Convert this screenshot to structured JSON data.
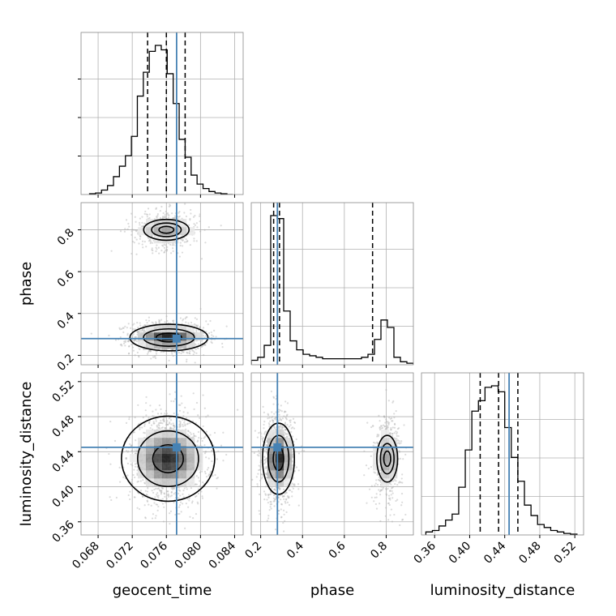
{
  "chart_data": {
    "type": "corner",
    "params": [
      "geocent_time",
      "phase",
      "luminosity_distance"
    ],
    "truths": {
      "geocent_time": 0.0772,
      "phase": 0.28,
      "luminosity_distance": 0.445
    },
    "quantiles": {
      "geocent_time": [
        0.0738,
        0.076,
        0.0782
      ],
      "phase": [
        0.262,
        0.29,
        0.735
      ],
      "luminosity_distance": [
        0.412,
        0.433,
        0.455
      ]
    },
    "ranges": {
      "geocent_time": [
        0.066,
        0.085
      ],
      "phase": [
        0.155,
        0.93
      ],
      "luminosity_distance": [
        0.345,
        0.53
      ]
    },
    "ticks": {
      "geocent_time": [
        0.068,
        0.072,
        0.076,
        0.08,
        0.084
      ],
      "phase": [
        0.2,
        0.4,
        0.6,
        0.8
      ],
      "luminosity_distance": [
        0.36,
        0.4,
        0.44,
        0.48,
        0.52
      ]
    },
    "tick_labels": {
      "geocent_time": [
        "0.068",
        "0.072",
        "0.076",
        "0.080",
        "0.084"
      ],
      "phase": [
        "0.2",
        "0.4",
        "0.6",
        "0.8"
      ],
      "luminosity_distance": [
        "0.36",
        "0.40",
        "0.44",
        "0.48",
        "0.52"
      ]
    },
    "histograms": {
      "geocent_time": {
        "bins": [
          0.067,
          0.0677,
          0.0684,
          0.0691,
          0.0698,
          0.0705,
          0.0712,
          0.0719,
          0.0726,
          0.0733,
          0.074,
          0.0747,
          0.0754,
          0.0761,
          0.0768,
          0.0775,
          0.0782,
          0.0789,
          0.0796,
          0.0803,
          0.081,
          0.0817,
          0.0824,
          0.0831,
          0.0838
        ],
        "counts": [
          0.005,
          0.01,
          0.03,
          0.06,
          0.12,
          0.19,
          0.26,
          0.39,
          0.66,
          0.82,
          0.96,
          1.0,
          0.97,
          0.81,
          0.61,
          0.37,
          0.25,
          0.13,
          0.07,
          0.04,
          0.02,
          0.01,
          0.005,
          0.0
        ]
      },
      "phase": {
        "bins": [
          0.155,
          0.186,
          0.217,
          0.248,
          0.279,
          0.31,
          0.341,
          0.372,
          0.403,
          0.434,
          0.465,
          0.496,
          0.527,
          0.558,
          0.589,
          0.62,
          0.651,
          0.682,
          0.713,
          0.744,
          0.775,
          0.806,
          0.837,
          0.868,
          0.899,
          0.93
        ],
        "counts": [
          0.03,
          0.05,
          0.13,
          1.0,
          0.98,
          0.36,
          0.16,
          0.1,
          0.07,
          0.06,
          0.05,
          0.04,
          0.04,
          0.04,
          0.04,
          0.04,
          0.04,
          0.05,
          0.07,
          0.17,
          0.3,
          0.25,
          0.05,
          0.02,
          0.01
        ]
      },
      "luminosity_distance": {
        "bins": [
          0.35,
          0.3575,
          0.365,
          0.3725,
          0.38,
          0.3875,
          0.395,
          0.4025,
          0.41,
          0.4175,
          0.425,
          0.4325,
          0.44,
          0.4475,
          0.455,
          0.4625,
          0.47,
          0.4775,
          0.485,
          0.4925,
          0.5,
          0.5075,
          0.515,
          0.5225
        ],
        "counts": [
          0.02,
          0.03,
          0.06,
          0.1,
          0.14,
          0.32,
          0.57,
          0.83,
          0.9,
          0.99,
          1.0,
          0.96,
          0.72,
          0.52,
          0.36,
          0.2,
          0.13,
          0.07,
          0.05,
          0.03,
          0.02,
          0.01,
          0.005
        ]
      }
    },
    "density_blobs": {
      "geocent_time|phase": [
        {
          "cx": 0.0763,
          "cy": 0.285,
          "sx": 0.0018,
          "sy": 0.025,
          "w": 0.7
        },
        {
          "cx": 0.076,
          "cy": 0.8,
          "sx": 0.0016,
          "sy": 0.03,
          "w": 0.3
        }
      ],
      "geocent_time|luminosity_distance": [
        {
          "cx": 0.0762,
          "cy": 0.432,
          "sx": 0.0018,
          "sy": 0.016,
          "w": 1.0
        }
      ],
      "phase|luminosity_distance": [
        {
          "cx": 0.285,
          "cy": 0.432,
          "sx": 0.03,
          "sy": 0.016,
          "w": 0.7
        },
        {
          "cx": 0.805,
          "cy": 0.432,
          "sx": 0.03,
          "sy": 0.016,
          "w": 0.3
        }
      ]
    },
    "contour_levels": [
      0.39,
      0.86,
      0.99
    ],
    "colors": {
      "hist": "#000000",
      "truth": "#4682b4",
      "scatter": "#b0b0b0",
      "quantile": "#000000"
    },
    "grid": true
  }
}
